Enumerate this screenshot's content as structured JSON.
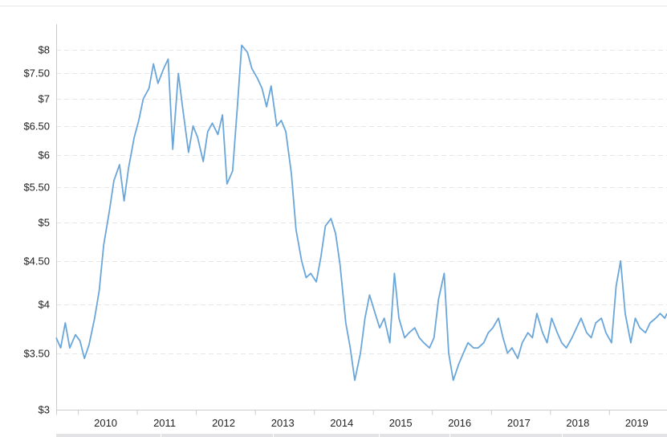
{
  "chart_data": {
    "type": "line",
    "title": "",
    "xlabel": "",
    "ylabel": "",
    "y_scale": "log",
    "ylim": [
      3,
      8.2
    ],
    "xlim": [
      "2009-08-17",
      "2019-12-23"
    ],
    "grid": {
      "horizontal": true,
      "vertical": false
    },
    "legend": "none",
    "colors": {
      "series": "#6aa6d9",
      "grid": "#e6e6e6",
      "axis": "#cccccc",
      "text": "#222222",
      "navigator": "#e3e3e6"
    },
    "y_ticks": [
      {
        "value": 3,
        "label": "$3"
      },
      {
        "value": 3.5,
        "label": "$3.50"
      },
      {
        "value": 4,
        "label": "$4"
      },
      {
        "value": 4.5,
        "label": "$4.50"
      },
      {
        "value": 5,
        "label": "$5"
      },
      {
        "value": 5.5,
        "label": "$5.50"
      },
      {
        "value": 6,
        "label": "$6"
      },
      {
        "value": 6.5,
        "label": "$6.50"
      },
      {
        "value": 7,
        "label": "$7"
      },
      {
        "value": 7.5,
        "label": "$7.50"
      },
      {
        "value": 8,
        "label": "$8"
      }
    ],
    "x_ticks": [
      {
        "date": "2010-01-01",
        "label": "2010"
      },
      {
        "date": "2011-01-01",
        "label": "2011"
      },
      {
        "date": "2012-01-01",
        "label": "2012"
      },
      {
        "date": "2013-01-01",
        "label": "2013"
      },
      {
        "date": "2014-01-01",
        "label": "2014"
      },
      {
        "date": "2015-01-01",
        "label": "2015"
      },
      {
        "date": "2016-01-01",
        "label": "2016"
      },
      {
        "date": "2017-01-01",
        "label": "2017"
      },
      {
        "date": "2018-01-01",
        "label": "2018"
      },
      {
        "date": "2019-01-01",
        "label": "2019"
      }
    ],
    "series": [
      {
        "x": [
          "2009-08-17",
          "2009-09-14",
          "2009-10-12",
          "2009-11-09",
          "2009-12-14",
          "2010-01-11",
          "2010-02-08",
          "2010-03-08",
          "2010-04-12",
          "2010-05-10",
          "2010-06-07",
          "2010-07-12",
          "2010-08-09",
          "2010-09-13",
          "2010-10-11",
          "2010-11-08",
          "2010-12-13",
          "2011-01-10",
          "2011-02-07",
          "2011-03-14",
          "2011-04-11",
          "2011-05-09",
          "2011-06-13",
          "2011-07-11",
          "2011-08-08",
          "2011-09-12",
          "2011-10-10",
          "2011-11-14",
          "2011-12-12",
          "2012-01-09",
          "2012-02-13",
          "2012-03-12",
          "2012-04-09",
          "2012-05-14",
          "2012-06-11",
          "2012-07-09",
          "2012-08-13",
          "2012-09-10",
          "2012-10-08",
          "2012-11-12",
          "2012-12-10",
          "2013-01-14",
          "2013-02-11",
          "2013-03-11",
          "2013-04-08",
          "2013-05-13",
          "2013-06-10",
          "2013-07-08",
          "2013-08-12",
          "2013-09-09",
          "2013-10-14",
          "2013-11-11",
          "2013-12-09",
          "2014-01-13",
          "2014-02-10",
          "2014-03-10",
          "2014-04-14",
          "2014-05-12",
          "2014-06-09",
          "2014-07-14",
          "2014-08-11",
          "2014-09-08",
          "2014-10-13",
          "2014-11-10",
          "2014-12-08",
          "2015-01-12",
          "2015-02-09",
          "2015-03-09",
          "2015-04-13",
          "2015-05-11",
          "2015-06-08",
          "2015-07-13",
          "2015-08-10",
          "2015-09-14",
          "2015-10-12",
          "2015-11-09",
          "2015-12-14",
          "2016-01-11",
          "2016-02-08",
          "2016-03-14",
          "2016-04-11",
          "2016-05-09",
          "2016-06-13",
          "2016-07-11",
          "2016-08-08",
          "2016-09-12",
          "2016-10-10",
          "2016-11-14",
          "2016-12-12",
          "2017-01-09",
          "2017-02-13",
          "2017-03-13",
          "2017-04-10",
          "2017-05-08",
          "2017-06-12",
          "2017-07-10",
          "2017-08-14",
          "2017-09-11",
          "2017-10-09",
          "2017-11-13",
          "2017-12-11",
          "2018-01-08",
          "2018-02-12",
          "2018-03-12",
          "2018-04-09",
          "2018-05-14",
          "2018-06-11",
          "2018-07-09",
          "2018-08-13",
          "2018-09-10",
          "2018-10-08",
          "2018-11-12",
          "2018-12-10",
          "2019-01-14",
          "2019-02-11",
          "2019-03-11",
          "2019-04-08",
          "2019-05-13",
          "2019-06-10",
          "2019-07-08",
          "2019-08-12",
          "2019-09-09",
          "2019-10-14",
          "2019-11-11",
          "2019-12-09",
          "2019-12-23"
        ],
        "y": [
          3.65,
          3.55,
          3.8,
          3.55,
          3.68,
          3.62,
          3.45,
          3.58,
          3.85,
          4.15,
          4.7,
          5.15,
          5.6,
          5.85,
          5.3,
          5.8,
          6.3,
          6.6,
          7.0,
          7.2,
          7.7,
          7.3,
          7.6,
          7.8,
          6.1,
          7.5,
          6.8,
          6.05,
          6.5,
          6.3,
          5.9,
          6.4,
          6.55,
          6.35,
          6.7,
          5.55,
          5.75,
          6.8,
          8.1,
          7.95,
          7.6,
          7.4,
          7.2,
          6.85,
          7.25,
          6.5,
          6.6,
          6.4,
          5.7,
          4.9,
          4.5,
          4.3,
          4.35,
          4.25,
          4.55,
          4.95,
          5.05,
          4.85,
          4.45,
          3.8,
          3.55,
          3.25,
          3.5,
          3.85,
          4.1,
          3.9,
          3.75,
          3.85,
          3.6,
          4.35,
          3.85,
          3.65,
          3.7,
          3.75,
          3.65,
          3.6,
          3.55,
          3.65,
          4.05,
          4.35,
          3.5,
          3.25,
          3.4,
          3.5,
          3.6,
          3.55,
          3.55,
          3.6,
          3.7,
          3.75,
          3.85,
          3.65,
          3.5,
          3.55,
          3.45,
          3.6,
          3.7,
          3.65,
          3.9,
          3.7,
          3.6,
          3.85,
          3.7,
          3.6,
          3.55,
          3.65,
          3.75,
          3.85,
          3.7,
          3.65,
          3.8,
          3.85,
          3.7,
          3.6,
          4.2,
          4.5,
          3.9,
          3.6,
          3.85,
          3.75,
          3.7,
          3.8,
          3.85,
          3.9,
          3.85,
          3.9
        ]
      }
    ]
  }
}
